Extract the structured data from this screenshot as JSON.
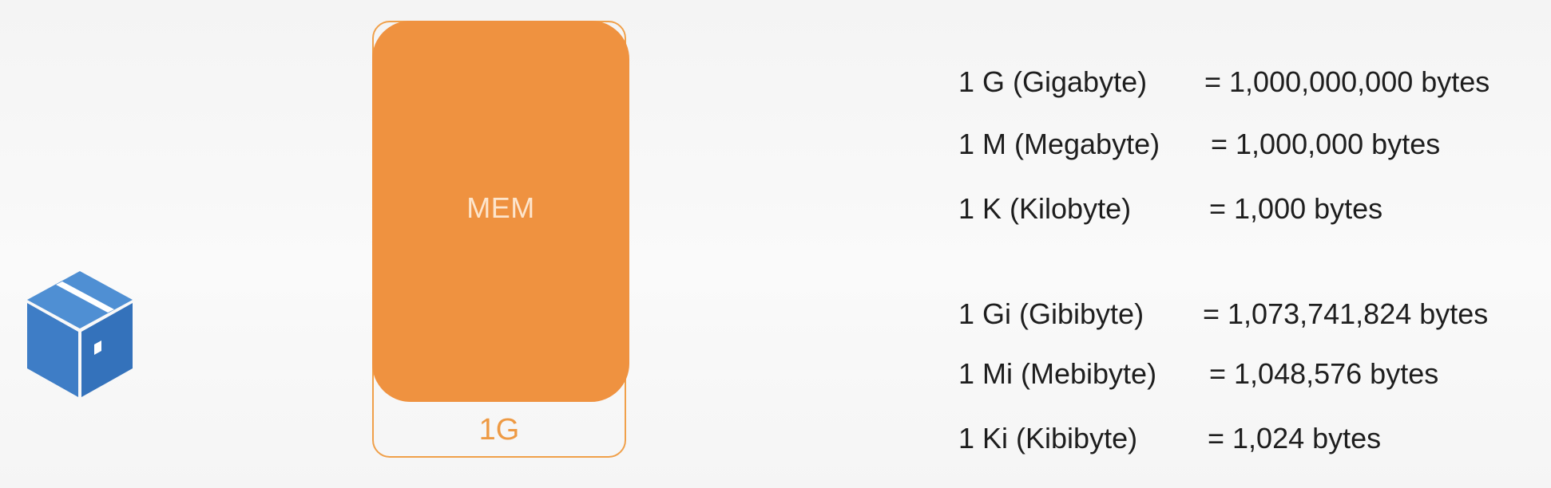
{
  "package": {
    "icon": "package-box-icon",
    "colors": {
      "top": "#4f8fd3",
      "left": "#3e7dc6",
      "right": "#3472bb",
      "tape": "#ffffff"
    }
  },
  "memory": {
    "label": "MEM",
    "size_label": "1G",
    "fill_color": "#ef9240",
    "outline_color": "#f0a04a"
  },
  "units": {
    "decimal": [
      {
        "name": "1 G (Gigabyte)",
        "value": "= 1,000,000,000 bytes"
      },
      {
        "name": "1 M (Megabyte)",
        "value": "= 1,000,000 bytes"
      },
      {
        "name": "1 K (Kilobyte)",
        "value": "= 1,000 bytes"
      }
    ],
    "binary": [
      {
        "name": "1 Gi (Gibibyte)",
        "value": "= 1,073,741,824 bytes"
      },
      {
        "name": "1 Mi (Mebibyte)",
        "value": "= 1,048,576 bytes"
      },
      {
        "name": "1 Ki (Kibibyte)",
        "value": "= 1,024 bytes"
      }
    ]
  }
}
